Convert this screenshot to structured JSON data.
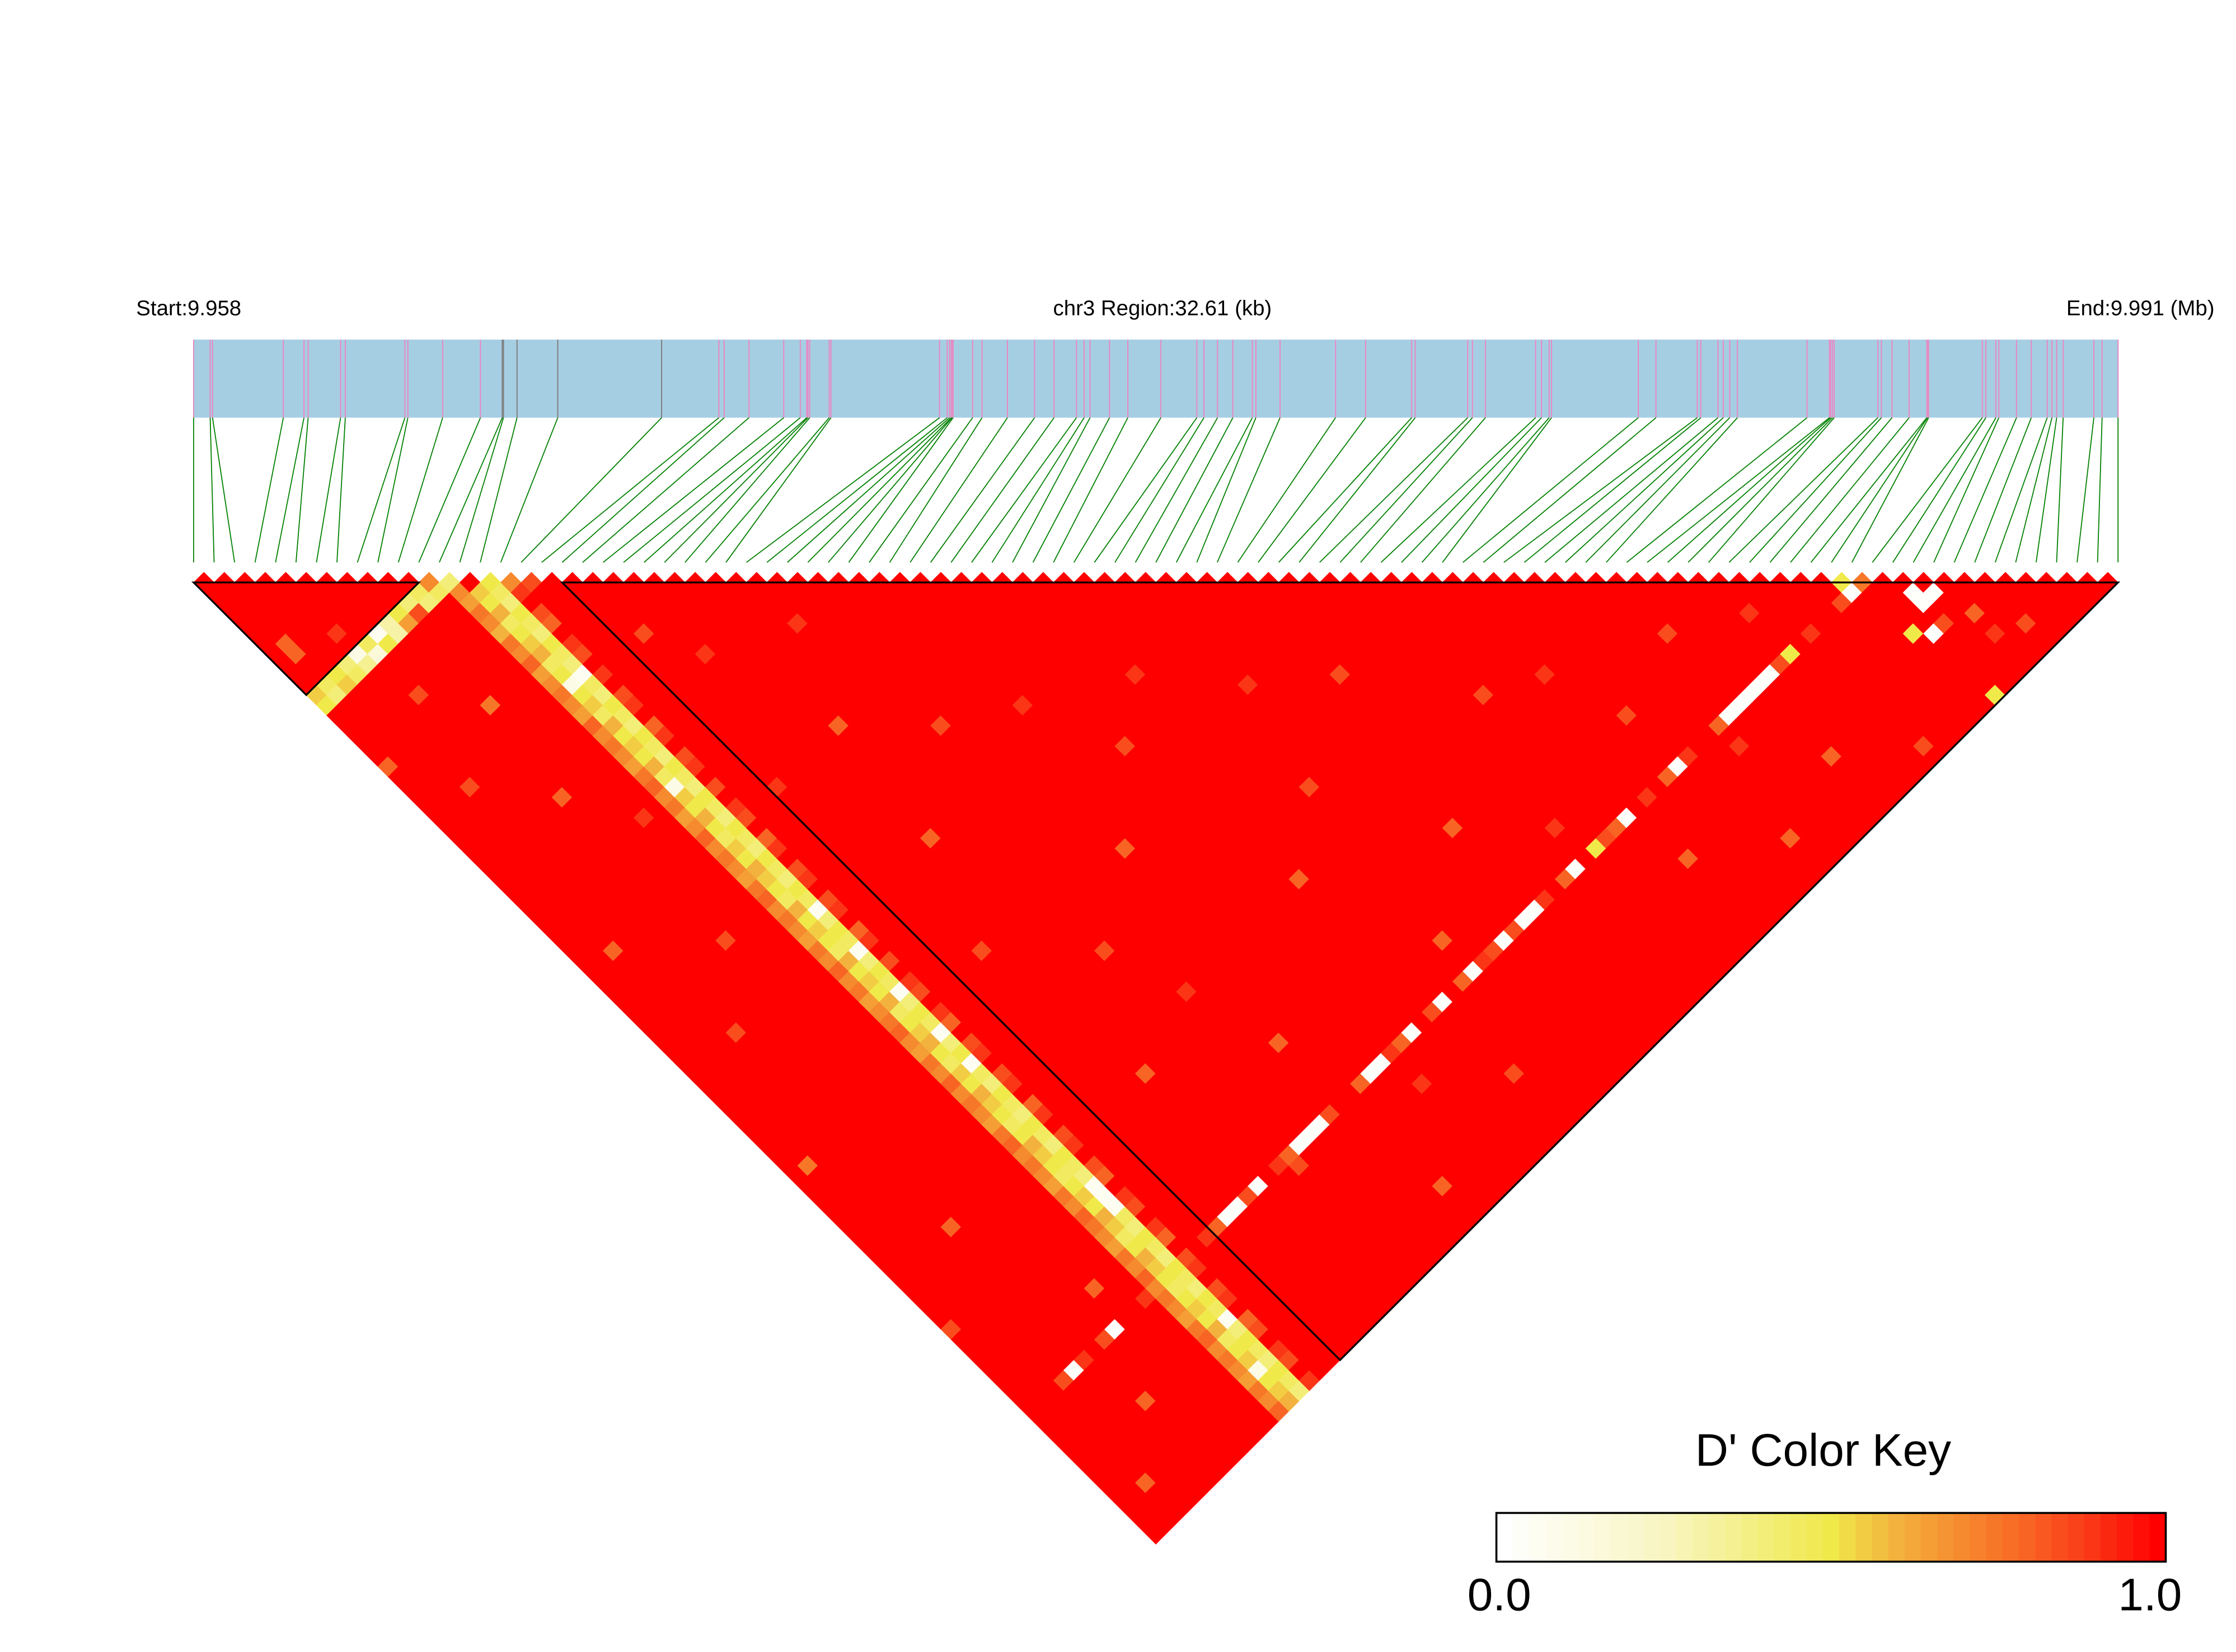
{
  "chart_data": {
    "type": "heatmap",
    "header": {
      "start_label": "Start:9.958",
      "region_label": "chr3 Region:32.61 (kb)",
      "end_label": "End:9.991 (Mb)"
    },
    "snp_count": 95,
    "snp_positions_mb": [
      9.958,
      9.95828,
      9.95832,
      9.95952,
      9.95987,
      9.95994,
      9.96049,
      9.96057,
      9.96158,
      9.96163,
      9.96222,
      9.96286,
      9.96323,
      9.96325,
      9.96348,
      9.96417,
      9.96593,
      9.9669,
      9.96699,
      9.96741,
      9.968,
      9.96828,
      9.96839,
      9.96841,
      9.96844,
      9.96877,
      9.9688,
      9.97064,
      9.97077,
      9.97081,
      9.97084,
      9.97085,
      9.97087,
      9.9712,
      9.97136,
      9.97179,
      9.97225,
      9.97258,
      9.97296,
      9.97309,
      9.97319,
      9.97352,
      9.97383,
      9.97439,
      9.975,
      9.97512,
      9.97535,
      9.97561,
      9.97594,
      9.976,
      9.97641,
      9.97735,
      9.97786,
      9.97864,
      9.9787,
      9.97959,
      9.97967,
      9.97989,
      9.98074,
      9.98084,
      9.98097,
      9.98101,
      9.98248,
      9.98278,
      9.98348,
      9.98354,
      9.98383,
      9.98392,
      9.98403,
      9.98416,
      9.98534,
      9.98572,
      9.98574,
      9.98577,
      9.9858,
      9.98654,
      9.9866,
      9.98678,
      9.98707,
      9.98737,
      9.98738,
      9.9874,
      9.98831,
      9.98837,
      9.98854,
      9.98859,
      9.98889,
      9.98914,
      9.98941,
      9.98949,
      9.98957,
      9.98968,
      9.9902,
      9.99034,
      9.99061
    ],
    "marker_colors": {
      "track": "#A6CEE3",
      "snp": "#E78AC3",
      "alt_snp": "#808080",
      "connector": "#008000"
    },
    "alt_marker_snps": [
      13,
      14,
      15,
      16,
      17
    ],
    "ld_blocks": [
      {
        "first_snp": 1,
        "last_snp": 12
      },
      {
        "first_snp": 19,
        "last_snp": 95
      }
    ],
    "measure": "D'",
    "default_value": 1.0,
    "rows": [
      {
        "snp": 13,
        "partner_start": 1,
        "values": [
          0.55,
          0.45,
          0.5,
          0.4,
          0.1,
          0.45,
          0.05,
          0.3,
          0.5,
          0.4,
          0.45,
          0.7
        ]
      },
      {
        "snp": 14,
        "partner_start": 1,
        "values": [
          0.5,
          0.4,
          0.55,
          0.45,
          0.35,
          0.15,
          0.5,
          0.3,
          0.65,
          0.85,
          0.4,
          0.45,
          0.4
        ]
      },
      {
        "snp": 13,
        "partner_start": 15,
        "values": [
          0.7,
          0.65,
          0.75,
          0.7,
          0.6,
          0.75,
          0.7,
          0.8,
          0.65,
          0.7,
          0.75,
          0.7,
          0.65,
          0.8,
          0.7,
          0.75,
          0.7,
          0.65,
          0.75,
          0.8,
          0.7,
          0.75,
          0.65,
          0.7,
          0.8,
          0.7,
          0.75,
          0.7,
          0.65,
          0.75,
          0.8,
          0.7,
          0.75,
          0.7,
          0.65,
          0.75,
          0.7,
          0.8,
          0.7,
          0.75,
          0.65,
          0.7,
          0.75,
          0.8,
          0.7,
          0.65,
          0.75,
          0.7,
          0.8,
          0.7,
          0.75,
          0.7,
          0.65,
          0.75,
          0.8,
          0.7,
          0.75,
          0.7,
          0.65,
          0.75,
          0.7,
          0.8,
          0.75,
          0.7,
          0.65,
          0.75,
          0.7,
          0.8,
          0.7,
          0.75,
          0.7,
          0.65,
          0.75,
          0.8,
          0.7,
          0.75,
          0.7,
          0.65,
          0.75,
          0.7,
          0.8
        ]
      },
      {
        "snp": 14,
        "partner_start": 16,
        "values": [
          0.55,
          0.5,
          0.6,
          0.45,
          0.5,
          0.55,
          0.6,
          0.45,
          0.5,
          0.1,
          0.5,
          0.55,
          0.45,
          0.6,
          0.5,
          0.55,
          0.5,
          0.6,
          0.45,
          0.1,
          0.55,
          0.5,
          0.6,
          0.5,
          0.45,
          0.55,
          0.5,
          0.6,
          0.55,
          0.5,
          0.45,
          0.6,
          0.5,
          0.55,
          0.5,
          0.45,
          0.6,
          0.5,
          0.55,
          0.5,
          0.6,
          0.45,
          0.5,
          0.55,
          0.6,
          0.5,
          0.45,
          0.55,
          0.5,
          0.6,
          0.55,
          0.5,
          0.45,
          0.5,
          0.6,
          0.55,
          0.5,
          0.45,
          0.5,
          0.55,
          0.5,
          0.6,
          0.55,
          0.45,
          0.5,
          0.6,
          0.55,
          0.5,
          0.45,
          0.5,
          0.55,
          0.5,
          0.6,
          0.45,
          0.5,
          0.55,
          0.1,
          0.5,
          0.55,
          0.6
        ]
      },
      {
        "snp": 15,
        "partner_start": 16,
        "values": [
          0.5,
          0.45,
          0.4,
          0.5,
          0.45,
          0.4,
          0.5,
          0.45,
          0.4,
          0.05,
          0.45,
          0.4,
          0.5,
          0.45,
          0.4,
          0.5,
          0.45,
          0.4,
          0.5,
          0.45,
          0.4,
          0.5,
          0.45,
          0.4,
          0.5,
          0.45,
          0.4,
          0.5,
          0.45,
          0.4,
          0.5,
          0.45,
          0.05,
          0.4,
          0.5,
          0.45,
          0.05,
          0.4,
          0.5,
          0.45,
          0.05,
          0.4,
          0.5,
          0.45,
          0.05,
          0.4,
          0.5,
          0.05,
          0.45,
          0.4,
          0.5,
          0.45,
          0.4,
          0.5,
          0.45,
          0.4,
          0.5,
          0.45,
          0.4,
          0.05,
          0.05,
          0.05,
          0.45,
          0.4,
          0.5,
          0.45,
          0.4,
          0.5,
          0.45,
          0.4,
          0.5,
          0.45,
          0.05,
          0.4,
          0.5,
          0.45,
          0.4,
          0.5,
          0.45,
          0.4
        ]
      },
      {
        "snp": 16,
        "partner_start": 17,
        "values": [
          0.7,
          0.9,
          1,
          0.85,
          0.8,
          1,
          0.9,
          0.85,
          1,
          0.9,
          1,
          0.85,
          0.9,
          1,
          0.8,
          0.9,
          1,
          0.85,
          0.9,
          1,
          0.85,
          1,
          0.9,
          0.85,
          1,
          0.8,
          0.9,
          1,
          0.85,
          0.9,
          1,
          0.85,
          0.9,
          1,
          0.8,
          0.9,
          1,
          0.85,
          1,
          0.9,
          0.85,
          1,
          0.9,
          0.8,
          1,
          0.85,
          0.9,
          1,
          0.85,
          0.9,
          1,
          0.8,
          0.9,
          1,
          0.85,
          0.9,
          1,
          0.85,
          0.8,
          1,
          0.9,
          0.85,
          1,
          0.9,
          0.8,
          1,
          0.85,
          0.9,
          1,
          0.85,
          0.9,
          1,
          0.8,
          0.85,
          1,
          0.9,
          0.85,
          1,
          0.9
        ]
      },
      {
        "snp": 83,
        "partner_start": 1,
        "values": [
          1,
          1,
          1,
          0.85,
          0.02,
          0.9,
          1,
          0.85,
          0.02,
          1,
          1,
          0.9
        ]
      },
      {
        "snp": 83,
        "partner_start": 17,
        "values": [
          1,
          0.9,
          0.8,
          0.02,
          0.02,
          0.85,
          0.02,
          1,
          0.9,
          0.8,
          0.02,
          0.02,
          0.02,
          0.85,
          1,
          1,
          0.8,
          0.02,
          0.02,
          0.9,
          0.8,
          0.02,
          1,
          0.85,
          0.02,
          1,
          0.8,
          0.02,
          0.9,
          0.85,
          0.02,
          0.85,
          0.02,
          0.02,
          0.9,
          1,
          0.8,
          0.02,
          1,
          0.5,
          0.85,
          0.8,
          0.02,
          1,
          0.9,
          1,
          0.8,
          0.02,
          0.9,
          1,
          1,
          0.8,
          0.02,
          0.02,
          0.02,
          0.02,
          0.02,
          0.85,
          0.5,
          1,
          0.9,
          1,
          1,
          0.85,
          0.02,
          0.75
        ]
      }
    ],
    "cells": [
      [
        81,
        82,
        0.5
      ],
      [
        84,
        86,
        0.02
      ],
      [
        84,
        87,
        0.02
      ],
      [
        85,
        87,
        0.02
      ],
      [
        82,
        88,
        0.5
      ],
      [
        83,
        89,
        0.02
      ],
      [
        83,
        95,
        0.5
      ],
      [
        84,
        89,
        0.85
      ],
      [
        86,
        90,
        0.8
      ],
      [
        2,
        9,
        0.8
      ],
      [
        2,
        10,
        0.8
      ],
      [
        5,
        11,
        0.9
      ],
      [
        17,
        18,
        0.85
      ],
      [
        20,
        26,
        0.85
      ],
      [
        22,
        30,
        0.9
      ],
      [
        25,
        40,
        0.8
      ],
      [
        28,
        33,
        0.9
      ],
      [
        30,
        45,
        0.85
      ],
      [
        33,
        60,
        0.8
      ],
      [
        35,
        48,
        0.9
      ],
      [
        38,
        55,
        0.85
      ],
      [
        40,
        70,
        0.8
      ],
      [
        42,
        52,
        0.9
      ],
      [
        45,
        66,
        0.85
      ],
      [
        47,
        58,
        0.9
      ],
      [
        50,
        75,
        0.8
      ],
      [
        52,
        62,
        0.85
      ],
      [
        55,
        80,
        0.9
      ],
      [
        58,
        70,
        0.85
      ],
      [
        60,
        88,
        0.8
      ],
      [
        62,
        72,
        0.9
      ],
      [
        64,
        78,
        0.85
      ],
      [
        66,
        92,
        0.8
      ],
      [
        68,
        85,
        0.9
      ],
      [
        70,
        76,
        0.85
      ],
      [
        72,
        90,
        0.8
      ],
      [
        75,
        79,
        0.9
      ],
      [
        77,
        94,
        0.85
      ],
      [
        86,
        92,
        0.9
      ],
      [
        88,
        93,
        0.85
      ],
      [
        24,
        50,
        0.8
      ],
      [
        27,
        64,
        0.85
      ],
      [
        31,
        77,
        0.8
      ],
      [
        36,
        86,
        0.9
      ],
      [
        41,
        90,
        0.85
      ],
      [
        44,
        80,
        0.8
      ],
      [
        29,
        70,
        0.9
      ],
      [
        21,
        58,
        0.85
      ],
      [
        19,
        40,
        0.9
      ],
      [
        23,
        72,
        0.8
      ],
      [
        26,
        84,
        0.85
      ],
      [
        32,
        92,
        0.8
      ],
      [
        3,
        40,
        0.8
      ],
      [
        5,
        50,
        0.85
      ],
      [
        8,
        30,
        0.8
      ],
      [
        2,
        60,
        0.75
      ],
      [
        6,
        70,
        0.8
      ],
      [
        9,
        45,
        0.85
      ],
      [
        10,
        80,
        0.8
      ],
      [
        4,
        25,
        0.85
      ],
      [
        7,
        88,
        0.8
      ],
      [
        11,
        35,
        0.9
      ],
      [
        1,
        75,
        0.85
      ],
      [
        3,
        92,
        0.8
      ],
      [
        1,
        20,
        0.8
      ],
      [
        6,
        18,
        0.85
      ],
      [
        9,
        22,
        0.75
      ]
    ],
    "color_key": {
      "title": "D' Color Key",
      "min_label": "0.0",
      "max_label": "1.0",
      "range": [
        0,
        1
      ],
      "bins": 41,
      "stops": [
        {
          "v": 0.0,
          "c": "#FFFFFF"
        },
        {
          "v": 0.25,
          "c": "#F8F5C0"
        },
        {
          "v": 0.5,
          "c": "#F0E94A"
        },
        {
          "v": 0.6,
          "c": "#F3B23D"
        },
        {
          "v": 0.7,
          "c": "#F68A2E"
        },
        {
          "v": 0.8,
          "c": "#F86424"
        },
        {
          "v": 0.9,
          "c": "#FA3616"
        },
        {
          "v": 1.0,
          "c": "#FF0000"
        }
      ]
    }
  }
}
